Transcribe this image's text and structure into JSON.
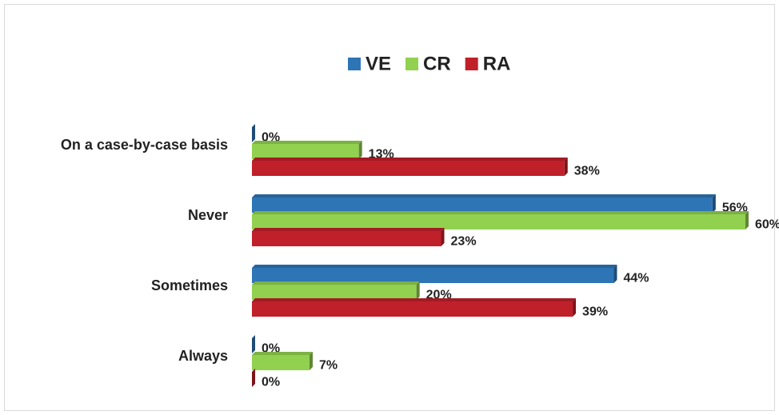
{
  "chart_data": {
    "type": "bar",
    "orientation": "horizontal",
    "categories": [
      "On a case-by-case basis",
      "Never",
      "Sometimes",
      "Always"
    ],
    "series": [
      {
        "name": "VE",
        "color": "#2e75b6",
        "values": [
          0,
          56,
          44,
          0
        ],
        "value_labels": [
          "0%",
          "56%",
          "44%",
          "0%"
        ]
      },
      {
        "name": "CR",
        "color": "#92d050",
        "values": [
          13,
          60,
          20,
          7
        ],
        "value_labels": [
          "13%",
          "60%",
          "20%",
          "7%"
        ]
      },
      {
        "name": "RA",
        "color": "#c0202a",
        "values": [
          38,
          23,
          39,
          0
        ],
        "value_labels": [
          "38%",
          "23%",
          "39%",
          "0%"
        ]
      }
    ]
  }
}
